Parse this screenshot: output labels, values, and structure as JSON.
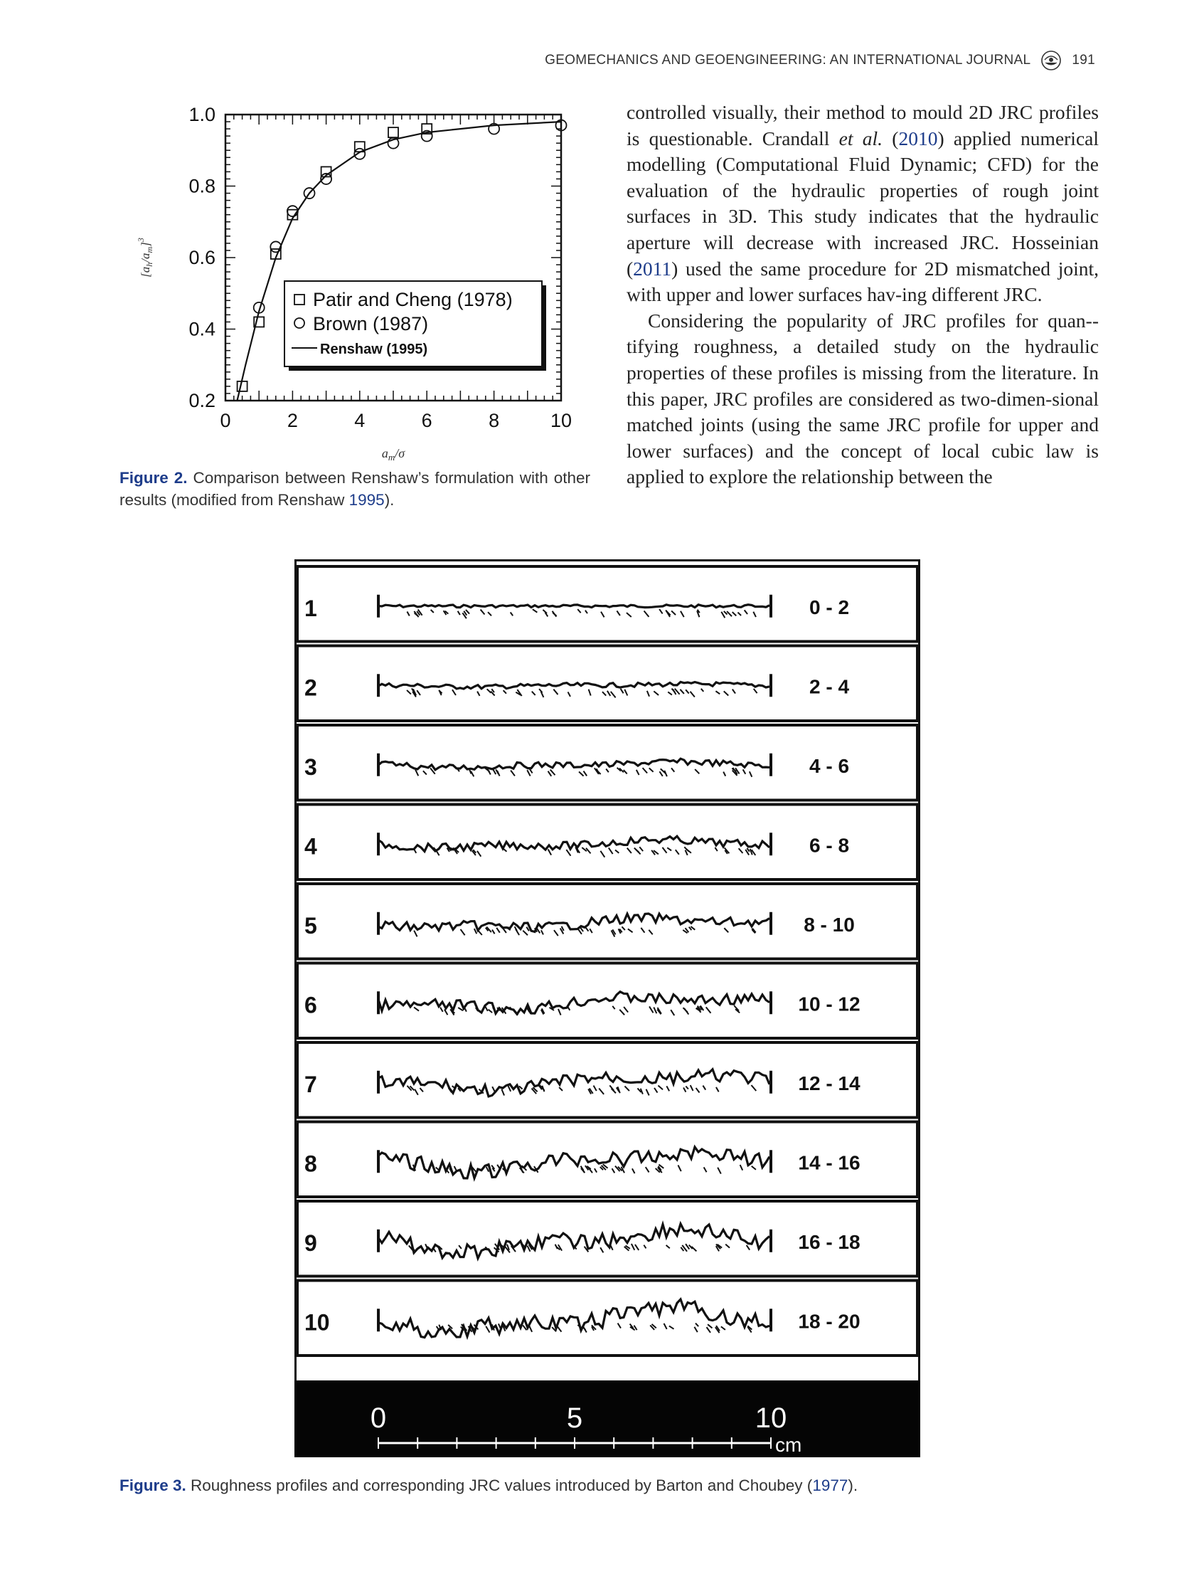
{
  "header": {
    "journal": "GEOMECHANICS AND GEOENGINEERING: AN INTERNATIONAL JOURNAL",
    "page": "191",
    "logo_icon": "crossmark-like-journal-logo"
  },
  "figure2": {
    "caption_label": "Figure 2.",
    "caption_text": "Comparison between Renshaw’s formulation with other results (modified from Renshaw ",
    "caption_ref": "1995",
    "caption_end": ")."
  },
  "body": {
    "p1_part1": "controlled visually, their method to mould 2D JRC profiles is questionable. Crandall ",
    "p1_etal": "et al.",
    "p1_part2": " (",
    "p1_ref1": "2010",
    "p1_part3": ") applied numerical modelling (Computational Fluid Dynamic; CFD) for the evaluation of the hydraulic properties of rough joint surfaces in 3D. This study indicates that the hydraulic aperture will decrease with increased JRC. Hosseinian (",
    "p1_ref2": "2011",
    "p1_part4": ") used the same procedure for 2D mismatched joint, with upper and lower surfaces hav-­ing different JRC.",
    "p2": "Considering the popularity of JRC profiles for quan-­tifying roughness, a detailed study on the hydraulic properties of these profiles is missing from the literature. In this paper, JRC profiles are considered as two-dimen-­sional matched joints (using the same JRC profile for upper and lower surfaces) and the concept of local cubic law is applied to explore the relationship between the"
  },
  "chart_data": {
    "type": "scatter",
    "title": "",
    "xlabel": "a_m/σ",
    "ylabel": "[a_h/a_m]^3",
    "xlim": [
      0,
      10
    ],
    "ylim": [
      0.2,
      1.0
    ],
    "xticks": [
      "0",
      "2",
      "4",
      "6",
      "8",
      "10"
    ],
    "yticks": [
      "0.2",
      "0.4",
      "0.6",
      "0.8",
      "1.0"
    ],
    "legend_position": "center-right",
    "series": [
      {
        "name": "Patir and Cheng (1978)",
        "marker": "square",
        "x": [
          0.5,
          1.0,
          1.5,
          2.0,
          3.0,
          4.0,
          5.0,
          6.0
        ],
        "y": [
          0.24,
          0.42,
          0.61,
          0.72,
          0.84,
          0.91,
          0.95,
          0.96
        ]
      },
      {
        "name": "Brown (1987)",
        "marker": "circle",
        "x": [
          1.0,
          1.5,
          2.0,
          2.5,
          3.0,
          4.0,
          5.0,
          6.0,
          8.0,
          10.0
        ],
        "y": [
          0.46,
          0.63,
          0.73,
          0.78,
          0.82,
          0.89,
          0.92,
          0.94,
          0.96,
          0.97
        ]
      },
      {
        "name": "Renshaw (1995)",
        "marker": "line",
        "x": [
          0.35,
          0.6,
          1.0,
          1.5,
          2.0,
          2.5,
          3.0,
          4.0,
          5.0,
          6.0,
          7.0,
          8.0,
          9.0,
          10.0
        ],
        "y": [
          0.2,
          0.3,
          0.45,
          0.6,
          0.71,
          0.78,
          0.83,
          0.895,
          0.93,
          0.95,
          0.96,
          0.97,
          0.975,
          0.98
        ]
      }
    ]
  },
  "figure3": {
    "caption_label": "Figure 3.",
    "caption_text": " Roughness profiles and corresponding JRC values introduced by Barton and Choubey (",
    "caption_ref": "1977",
    "caption_end": ").",
    "profiles": [
      {
        "num": "1",
        "range": "0 - 2"
      },
      {
        "num": "2",
        "range": "2 - 4"
      },
      {
        "num": "3",
        "range": "4 - 6"
      },
      {
        "num": "4",
        "range": "6 - 8"
      },
      {
        "num": "5",
        "range": "8 - 10"
      },
      {
        "num": "6",
        "range": "10 - 12"
      },
      {
        "num": "7",
        "range": "12 - 14"
      },
      {
        "num": "8",
        "range": "14 - 16"
      },
      {
        "num": "9",
        "range": "16 - 18"
      },
      {
        "num": "10",
        "range": "18 - 20"
      }
    ],
    "scale": {
      "labels": [
        "0",
        "5",
        "10"
      ],
      "unit": "cm"
    }
  }
}
